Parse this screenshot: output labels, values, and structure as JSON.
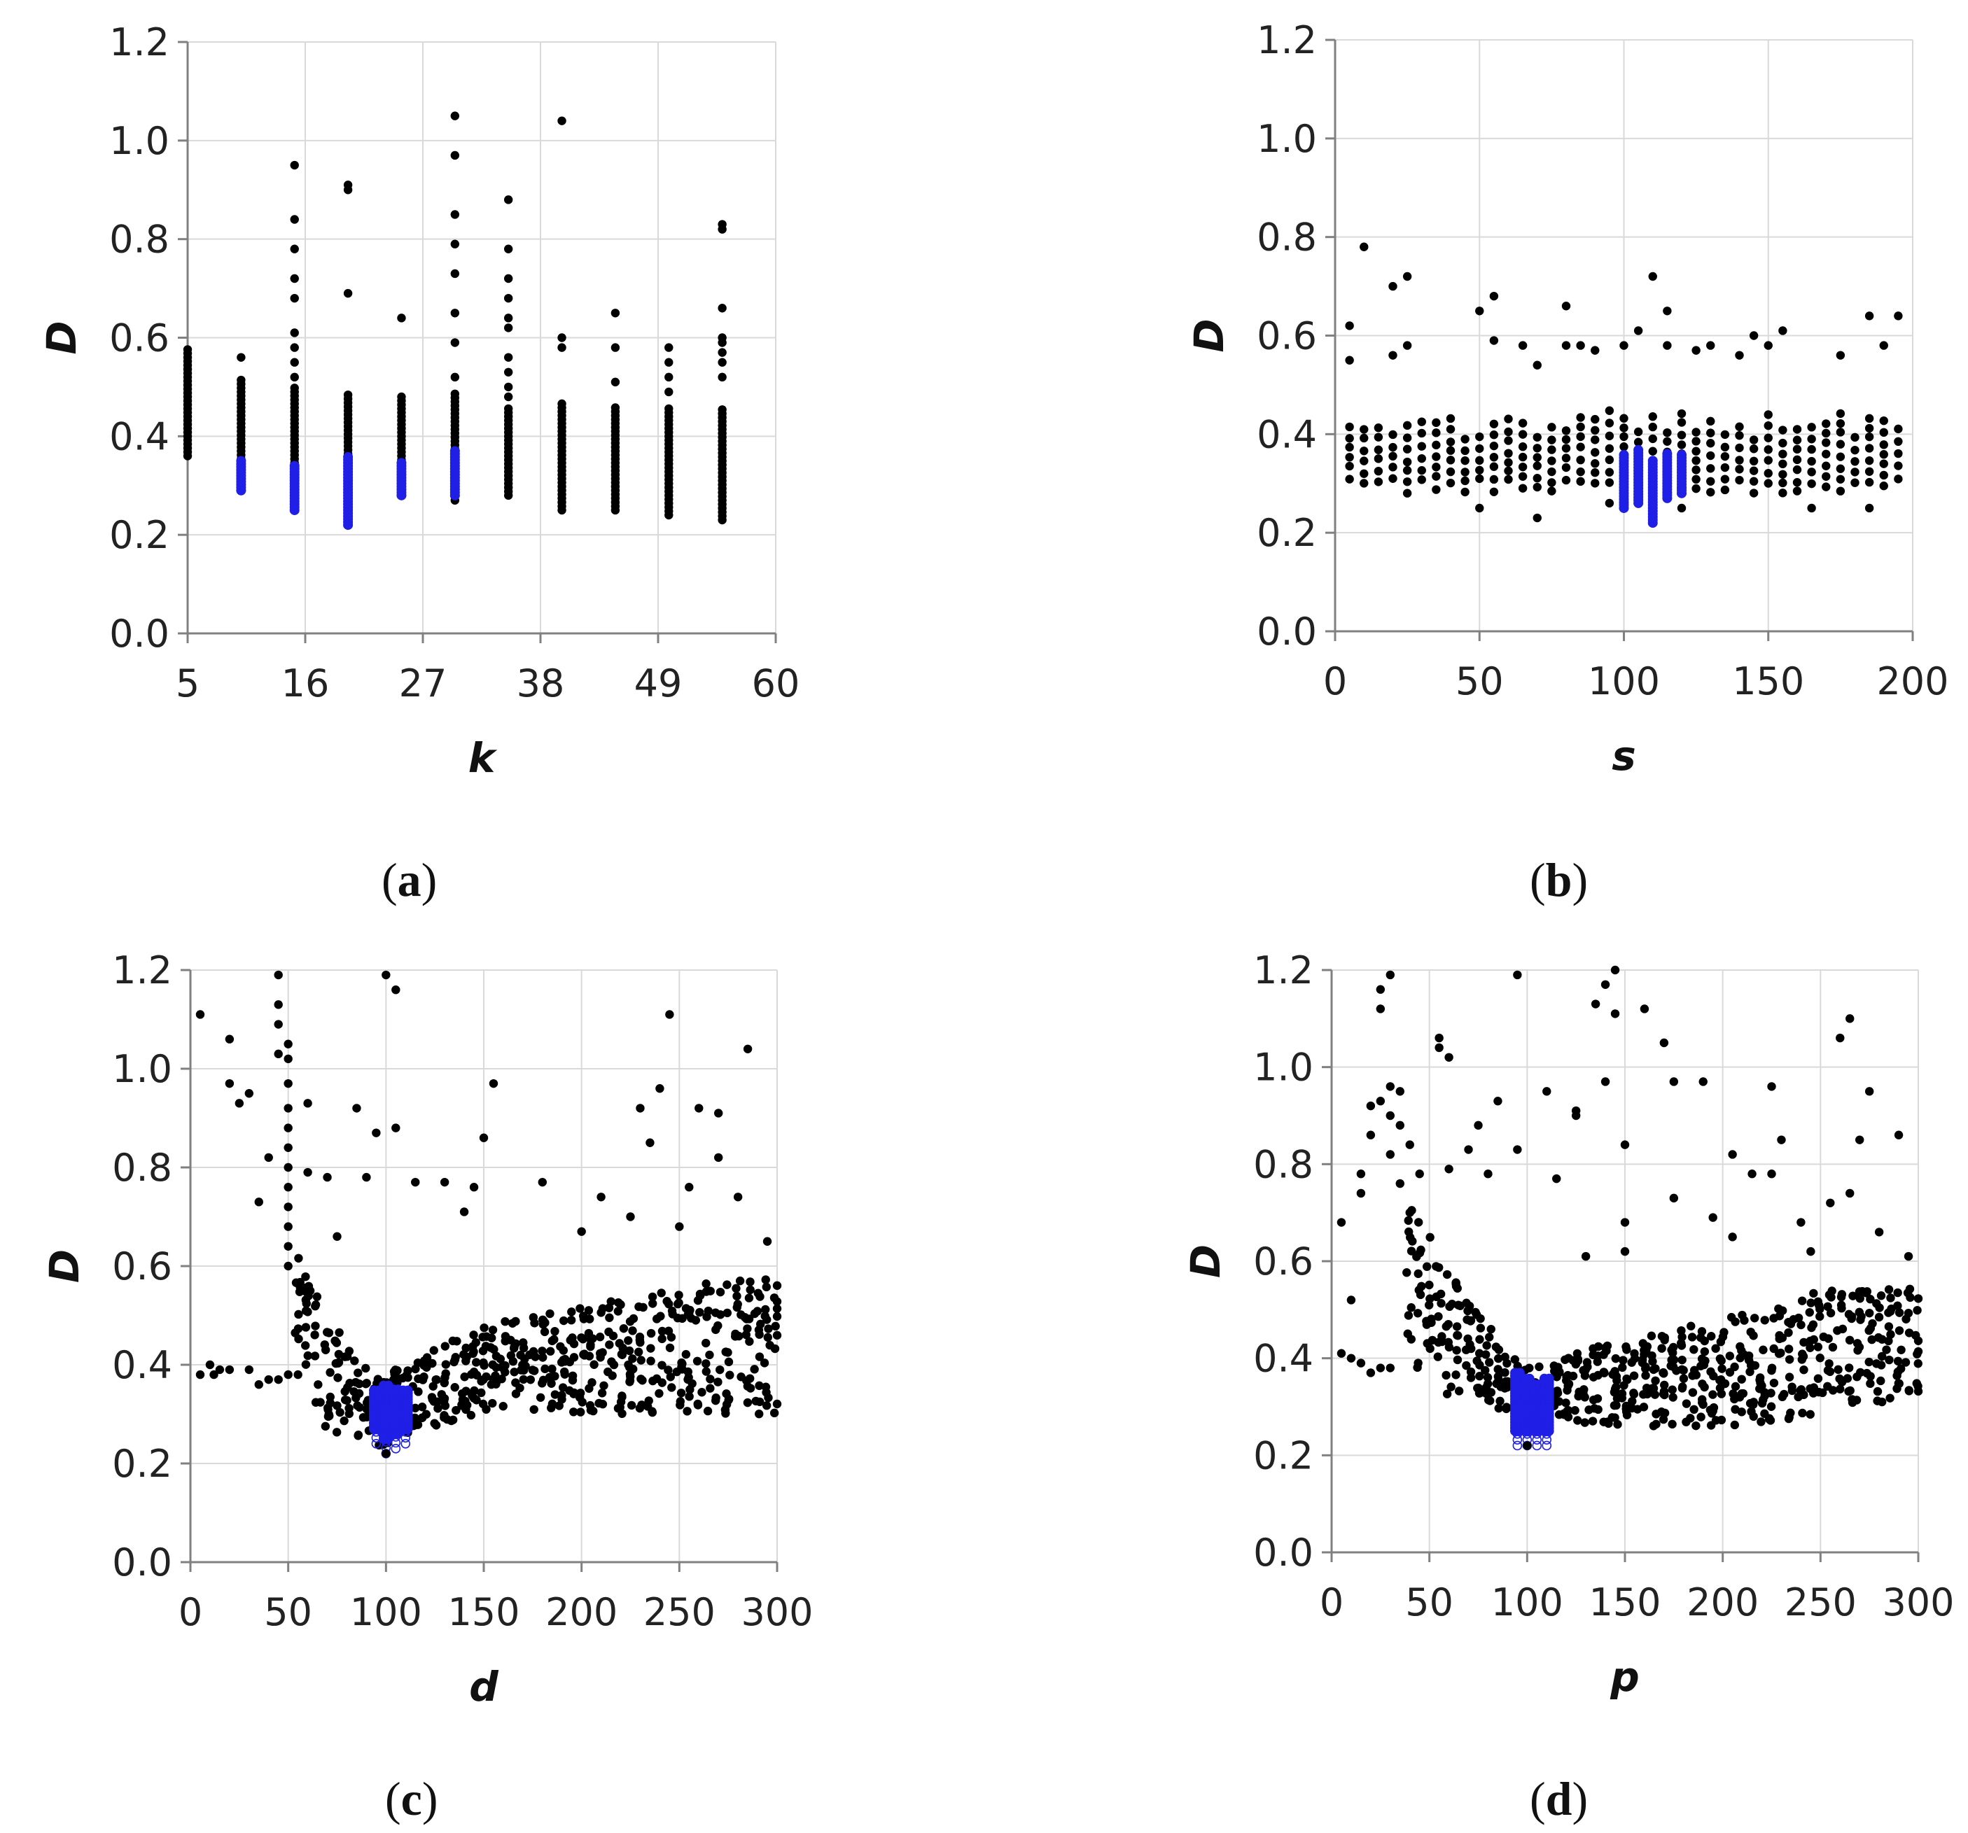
{
  "colors": {
    "black_point": "#000000",
    "blue_point": "#1f1fe6",
    "grid": "#d9d9d9",
    "axis": "#808080"
  },
  "panels": [
    {
      "label_open": "(",
      "label_letter": "a",
      "label_close": ")"
    },
    {
      "label_open": "(",
      "label_letter": "b",
      "label_close": ")"
    },
    {
      "label_open": "(",
      "label_letter": "c",
      "label_close": ")"
    },
    {
      "label_open": "(",
      "label_letter": "d",
      "label_close": ")"
    }
  ],
  "chart_data": [
    {
      "type": "scatter",
      "title": "",
      "xlabel": "k",
      "ylabel": "D",
      "xlim": [
        5,
        60
      ],
      "ylim": [
        0,
        1.2
      ],
      "xticks": [
        5,
        16,
        27,
        38,
        49,
        60
      ],
      "xtick_labels": [
        "5",
        "16",
        "27",
        "38",
        "49",
        "60"
      ],
      "yticks": [
        0,
        0.2,
        0.4,
        0.6,
        0.8,
        1.0,
        1.2
      ],
      "ytick_labels": [
        "0.0",
        "0.2",
        "0.4",
        "0.6",
        "0.8",
        "1.0",
        "1.2"
      ],
      "grid": true,
      "columns": [
        {
          "x": 5,
          "low": 0.36,
          "high": 0.58,
          "outliers": []
        },
        {
          "x": 10,
          "low": 0.29,
          "high": 0.52,
          "outliers": [
            0.56
          ],
          "blue": [
            0.29,
            0.35
          ]
        },
        {
          "x": 15,
          "low": 0.25,
          "high": 0.5,
          "outliers": [
            0.52,
            0.55,
            0.58,
            0.61,
            0.68,
            0.72,
            0.78,
            0.84,
            0.95
          ],
          "blue": [
            0.25,
            0.34
          ]
        },
        {
          "x": 20,
          "low": 0.22,
          "high": 0.49,
          "outliers": [
            0.69,
            0.9,
            0.91
          ],
          "blue": [
            0.22,
            0.36
          ]
        },
        {
          "x": 25,
          "low": 0.28,
          "high": 0.48,
          "outliers": [
            0.64
          ],
          "blue": [
            0.28,
            0.35
          ]
        },
        {
          "x": 30,
          "low": 0.27,
          "high": 0.49,
          "outliers": [
            0.52,
            0.59,
            0.65,
            0.73,
            0.79,
            0.85,
            0.97,
            1.05
          ],
          "blue": [
            0.28,
            0.37
          ]
        },
        {
          "x": 35,
          "low": 0.28,
          "high": 0.46,
          "outliers": [
            0.48,
            0.5,
            0.53,
            0.56,
            0.62,
            0.64,
            0.68,
            0.72,
            0.78,
            0.88
          ]
        },
        {
          "x": 40,
          "low": 0.25,
          "high": 0.47,
          "outliers": [
            0.58,
            0.6,
            1.04
          ]
        },
        {
          "x": 45,
          "low": 0.25,
          "high": 0.46,
          "outliers": [
            0.51,
            0.58,
            0.65
          ]
        },
        {
          "x": 50,
          "low": 0.24,
          "high": 0.46,
          "outliers": [
            0.49,
            0.52,
            0.55,
            0.58
          ]
        },
        {
          "x": 55,
          "low": 0.23,
          "high": 0.46,
          "outliers": [
            0.52,
            0.55,
            0.57,
            0.59,
            0.6,
            0.66,
            0.82,
            0.83
          ]
        }
      ]
    },
    {
      "type": "scatter",
      "title": "",
      "xlabel": "s",
      "ylabel": "D",
      "xlim": [
        0,
        200
      ],
      "ylim": [
        0,
        1.2
      ],
      "xticks": [
        0,
        50,
        100,
        150,
        200
      ],
      "xtick_labels": [
        "0",
        "50",
        "100",
        "150",
        "200"
      ],
      "yticks": [
        0,
        0.2,
        0.4,
        0.6,
        0.8,
        1.0,
        1.2
      ],
      "ytick_labels": [
        "0.0",
        "0.2",
        "0.4",
        "0.6",
        "0.8",
        "1.0",
        "1.2"
      ],
      "grid": true,
      "baseline": {
        "x_start": 5,
        "x_end": 195,
        "step": 5,
        "low": 0.28,
        "high": 0.45
      },
      "outliers": [
        [
          5,
          0.62
        ],
        [
          5,
          0.55
        ],
        [
          10,
          0.78
        ],
        [
          20,
          0.7
        ],
        [
          20,
          0.56
        ],
        [
          25,
          0.72
        ],
        [
          25,
          0.58
        ],
        [
          50,
          0.65
        ],
        [
          55,
          0.68
        ],
        [
          55,
          0.59
        ],
        [
          65,
          0.58
        ],
        [
          70,
          0.54
        ],
        [
          80,
          0.66
        ],
        [
          80,
          0.58
        ],
        [
          85,
          0.58
        ],
        [
          90,
          0.57
        ],
        [
          100,
          0.58
        ],
        [
          105,
          0.61
        ],
        [
          110,
          0.72
        ],
        [
          115,
          0.65
        ],
        [
          115,
          0.58
        ],
        [
          125,
          0.57
        ],
        [
          130,
          0.58
        ],
        [
          140,
          0.56
        ],
        [
          145,
          0.6
        ],
        [
          150,
          0.58
        ],
        [
          155,
          0.61
        ],
        [
          175,
          0.56
        ],
        [
          185,
          0.64
        ],
        [
          190,
          0.58
        ],
        [
          195,
          0.64
        ],
        [
          50,
          0.25
        ],
        [
          70,
          0.23
        ],
        [
          95,
          0.26
        ],
        [
          120,
          0.25
        ],
        [
          165,
          0.25
        ],
        [
          185,
          0.25
        ]
      ],
      "blue_columns": [
        {
          "x": 100,
          "low": 0.25,
          "high": 0.36
        },
        {
          "x": 105,
          "low": 0.26,
          "high": 0.37
        },
        {
          "x": 110,
          "low": 0.22,
          "high": 0.35
        },
        {
          "x": 115,
          "low": 0.27,
          "high": 0.36
        },
        {
          "x": 120,
          "low": 0.28,
          "high": 0.36
        }
      ]
    },
    {
      "type": "scatter",
      "title": "",
      "xlabel": "d",
      "ylabel": "D",
      "xlim": [
        0,
        300
      ],
      "ylim": [
        0,
        1.2
      ],
      "xticks": [
        0,
        50,
        100,
        150,
        200,
        250,
        300
      ],
      "xtick_labels": [
        "0",
        "50",
        "100",
        "150",
        "200",
        "250",
        "300"
      ],
      "yticks": [
        0,
        0.2,
        0.4,
        0.6,
        0.8,
        1.0,
        1.2
      ],
      "ytick_labels": [
        "0.0",
        "0.2",
        "0.4",
        "0.6",
        "0.8",
        "1.0",
        "1.2"
      ],
      "grid": true,
      "trend": [
        [
          55,
          0.45,
          0.62
        ],
        [
          70,
          0.26,
          0.5
        ],
        [
          90,
          0.24,
          0.4
        ],
        [
          100,
          0.22,
          0.38
        ],
        [
          120,
          0.27,
          0.42
        ],
        [
          150,
          0.3,
          0.48
        ],
        [
          200,
          0.3,
          0.52
        ],
        [
          250,
          0.3,
          0.56
        ],
        [
          300,
          0.3,
          0.58
        ]
      ],
      "left_flat": [
        [
          5,
          0.38
        ],
        [
          10,
          0.4
        ],
        [
          12,
          0.38
        ],
        [
          15,
          0.39
        ],
        [
          20,
          0.39
        ],
        [
          30,
          0.39
        ],
        [
          35,
          0.36
        ],
        [
          40,
          0.37
        ],
        [
          45,
          0.37
        ],
        [
          50,
          0.38
        ],
        [
          55,
          0.38
        ]
      ],
      "outliers": [
        [
          5,
          1.11
        ],
        [
          20,
          1.06
        ],
        [
          20,
          0.97
        ],
        [
          25,
          0.93
        ],
        [
          30,
          0.95
        ],
        [
          35,
          0.73
        ],
        [
          40,
          0.82
        ],
        [
          45,
          1.19
        ],
        [
          45,
          1.13
        ],
        [
          45,
          1.09
        ],
        [
          45,
          1.03
        ],
        [
          50,
          1.05
        ],
        [
          50,
          1.02
        ],
        [
          50,
          0.97
        ],
        [
          50,
          0.92
        ],
        [
          50,
          0.88
        ],
        [
          50,
          0.84
        ],
        [
          50,
          0.8
        ],
        [
          50,
          0.76
        ],
        [
          50,
          0.72
        ],
        [
          50,
          0.68
        ],
        [
          50,
          0.64
        ],
        [
          50,
          0.6
        ],
        [
          60,
          0.93
        ],
        [
          60,
          0.79
        ],
        [
          70,
          0.78
        ],
        [
          75,
          0.66
        ],
        [
          85,
          0.92
        ],
        [
          90,
          0.78
        ],
        [
          95,
          0.87
        ],
        [
          100,
          1.19
        ],
        [
          105,
          1.16
        ],
        [
          105,
          0.88
        ],
        [
          115,
          0.77
        ],
        [
          130,
          0.77
        ],
        [
          140,
          0.71
        ],
        [
          145,
          0.76
        ],
        [
          150,
          0.86
        ],
        [
          155,
          0.97
        ],
        [
          180,
          0.77
        ],
        [
          200,
          0.67
        ],
        [
          210,
          0.74
        ],
        [
          225,
          0.7
        ],
        [
          230,
          0.92
        ],
        [
          235,
          0.85
        ],
        [
          240,
          0.96
        ],
        [
          245,
          1.11
        ],
        [
          250,
          0.68
        ],
        [
          255,
          0.76
        ],
        [
          260,
          0.92
        ],
        [
          270,
          0.91
        ],
        [
          270,
          0.82
        ],
        [
          280,
          0.74
        ],
        [
          285,
          1.04
        ],
        [
          295,
          0.65
        ]
      ],
      "blue_columns": [
        {
          "x": 95,
          "low": 0.24,
          "high": 0.35
        },
        {
          "x": 100,
          "low": 0.22,
          "high": 0.36
        },
        {
          "x": 105,
          "low": 0.23,
          "high": 0.35
        },
        {
          "x": 110,
          "low": 0.24,
          "high": 0.35
        }
      ]
    },
    {
      "type": "scatter",
      "title": "",
      "xlabel": "p",
      "ylabel": "D",
      "xlim": [
        0,
        300
      ],
      "ylim": [
        0,
        1.2
      ],
      "xticks": [
        0,
        50,
        100,
        150,
        200,
        250,
        300
      ],
      "xtick_labels": [
        "0",
        "50",
        "100",
        "150",
        "200",
        "250",
        "300"
      ],
      "yticks": [
        0,
        0.2,
        0.4,
        0.6,
        0.8,
        1.0,
        1.2
      ],
      "ytick_labels": [
        "0.0",
        "0.2",
        "0.4",
        "0.6",
        "0.8",
        "1.0",
        "1.2"
      ],
      "grid": true,
      "trend": [
        [
          40,
          0.4,
          0.72
        ],
        [
          60,
          0.32,
          0.62
        ],
        [
          80,
          0.3,
          0.46
        ],
        [
          100,
          0.26,
          0.38
        ],
        [
          130,
          0.26,
          0.42
        ],
        [
          200,
          0.26,
          0.48
        ],
        [
          250,
          0.28,
          0.54
        ],
        [
          300,
          0.32,
          0.55
        ]
      ],
      "left_flat": [
        [
          5,
          0.41
        ],
        [
          10,
          0.4
        ],
        [
          15,
          0.39
        ],
        [
          20,
          0.37
        ],
        [
          25,
          0.38
        ],
        [
          30,
          0.38
        ]
      ],
      "outliers": [
        [
          5,
          0.68
        ],
        [
          10,
          0.52
        ],
        [
          15,
          0.78
        ],
        [
          15,
          0.74
        ],
        [
          20,
          0.86
        ],
        [
          20,
          0.92
        ],
        [
          25,
          0.93
        ],
        [
          25,
          1.12
        ],
        [
          25,
          1.16
        ],
        [
          30,
          1.19
        ],
        [
          30,
          0.96
        ],
        [
          30,
          0.9
        ],
        [
          30,
          0.82
        ],
        [
          35,
          0.95
        ],
        [
          35,
          0.88
        ],
        [
          35,
          0.76
        ],
        [
          40,
          0.84
        ],
        [
          40,
          0.7
        ],
        [
          45,
          0.78
        ],
        [
          55,
          1.06
        ],
        [
          55,
          1.04
        ],
        [
          60,
          1.02
        ],
        [
          60,
          0.79
        ],
        [
          70,
          0.83
        ],
        [
          75,
          0.88
        ],
        [
          80,
          0.78
        ],
        [
          85,
          0.93
        ],
        [
          95,
          1.19
        ],
        [
          95,
          0.83
        ],
        [
          110,
          0.95
        ],
        [
          115,
          0.77
        ],
        [
          125,
          0.9
        ],
        [
          125,
          0.91
        ],
        [
          130,
          0.61
        ],
        [
          135,
          1.13
        ],
        [
          140,
          1.17
        ],
        [
          140,
          0.97
        ],
        [
          145,
          1.2
        ],
        [
          145,
          1.11
        ],
        [
          150,
          0.84
        ],
        [
          150,
          0.68
        ],
        [
          150,
          0.62
        ],
        [
          160,
          1.12
        ],
        [
          170,
          1.05
        ],
        [
          175,
          0.97
        ],
        [
          175,
          0.73
        ],
        [
          190,
          0.97
        ],
        [
          195,
          0.69
        ],
        [
          205,
          0.82
        ],
        [
          205,
          0.65
        ],
        [
          215,
          0.78
        ],
        [
          225,
          0.96
        ],
        [
          225,
          0.78
        ],
        [
          230,
          0.85
        ],
        [
          240,
          0.68
        ],
        [
          245,
          0.62
        ],
        [
          255,
          0.72
        ],
        [
          260,
          1.06
        ],
        [
          265,
          1.1
        ],
        [
          265,
          0.74
        ],
        [
          270,
          0.85
        ],
        [
          275,
          0.95
        ],
        [
          280,
          0.66
        ],
        [
          290,
          0.86
        ],
        [
          295,
          0.61
        ]
      ],
      "blue_columns": [
        {
          "x": 95,
          "low": 0.22,
          "high": 0.37
        },
        {
          "x": 100,
          "low": 0.22,
          "high": 0.36
        },
        {
          "x": 105,
          "low": 0.22,
          "high": 0.35
        },
        {
          "x": 110,
          "low": 0.22,
          "high": 0.36
        }
      ]
    }
  ]
}
